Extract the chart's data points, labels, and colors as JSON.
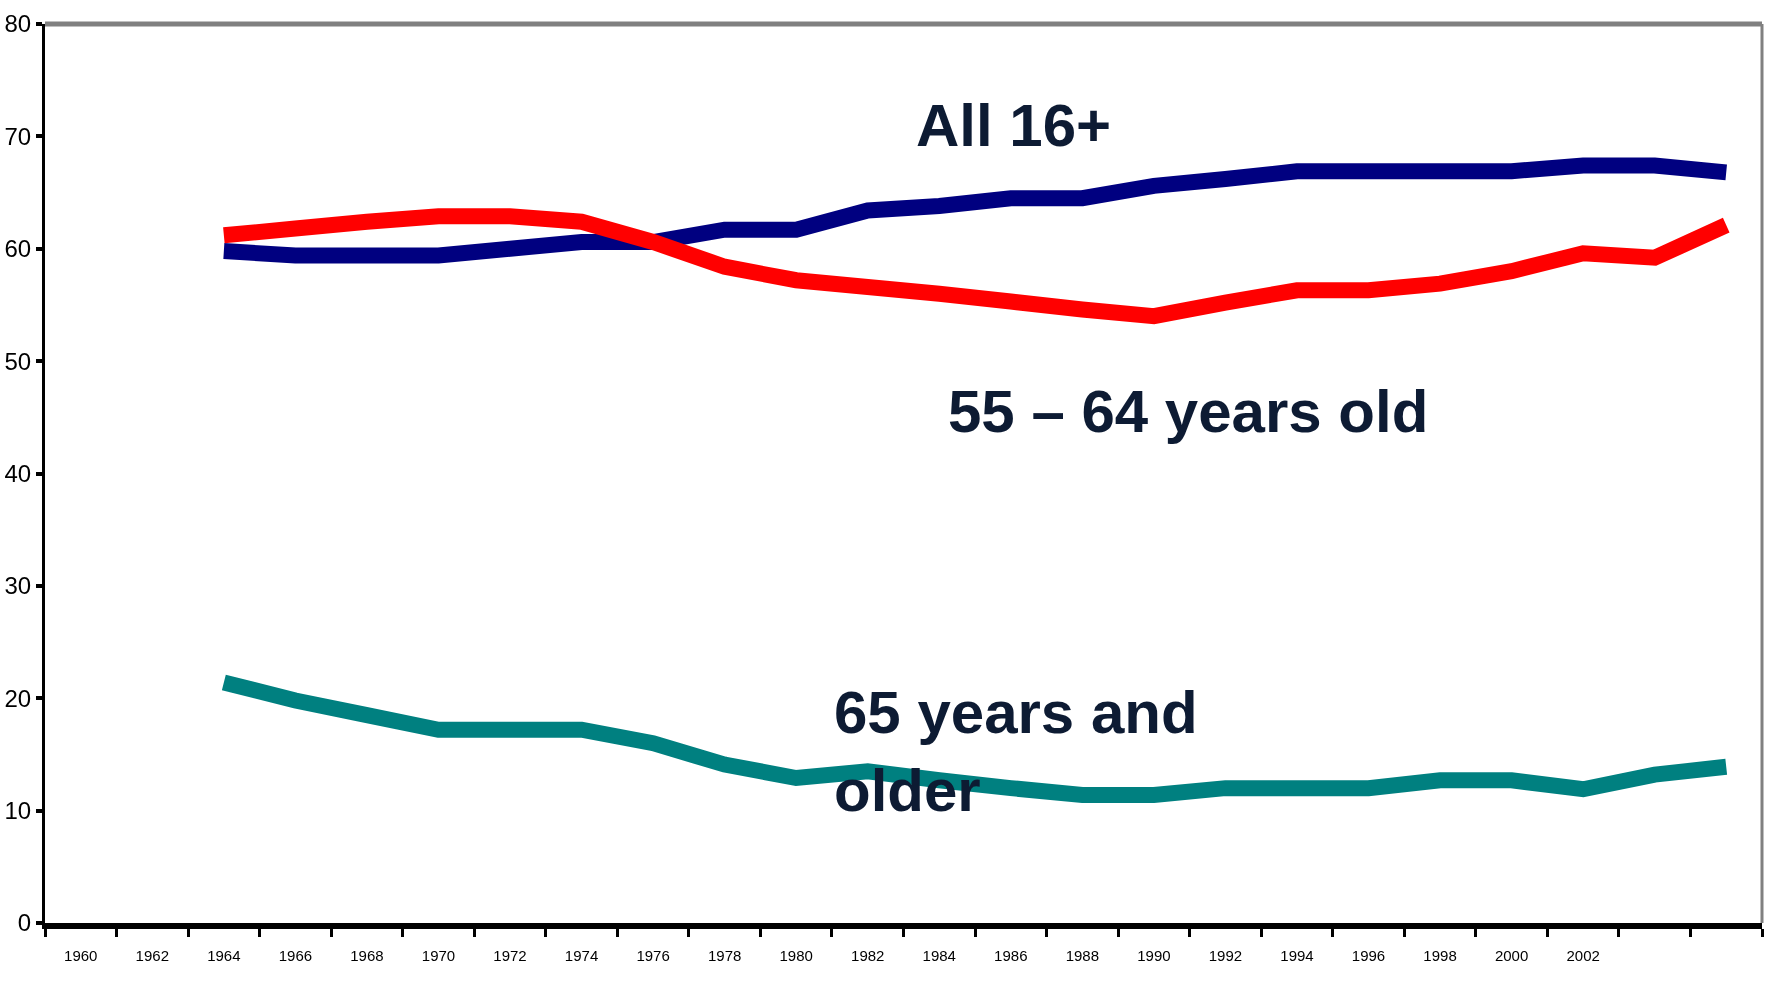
{
  "chart_data": {
    "type": "line",
    "x": [
      1964,
      1966,
      1968,
      1970,
      1972,
      1974,
      1976,
      1978,
      1980,
      1982,
      1984,
      1986,
      1988,
      1990,
      1992,
      1994,
      1996,
      1998,
      2000,
      2002,
      2004,
      2006
    ],
    "series": [
      {
        "name": "All 16+",
        "color": "#000080",
        "values": [
          59.8,
          59.4,
          59.4,
          59.4,
          60.0,
          60.6,
          60.6,
          61.7,
          61.7,
          63.4,
          63.8,
          64.5,
          64.5,
          65.6,
          66.2,
          66.9,
          66.9,
          66.9,
          66.9,
          67.4,
          67.4,
          66.8
        ]
      },
      {
        "name": "55 – 64 years old",
        "color": "#ff0000",
        "values": [
          61.2,
          61.8,
          62.4,
          62.9,
          62.9,
          62.4,
          60.6,
          58.4,
          57.2,
          56.6,
          56.0,
          55.3,
          54.6,
          54.0,
          55.2,
          56.3,
          56.3,
          56.9,
          58.0,
          59.6,
          59.2,
          62.1
        ]
      },
      {
        "name": "65 years and older",
        "color": "#008080",
        "values": [
          21.4,
          19.8,
          18.5,
          17.2,
          17.2,
          17.2,
          16.0,
          14.1,
          12.9,
          13.5,
          12.7,
          12.0,
          11.4,
          11.4,
          12.0,
          12.0,
          12.0,
          12.7,
          12.7,
          11.9,
          13.2,
          13.9
        ]
      }
    ],
    "xlim": [
      1959,
      2007
    ],
    "xticks": [
      {
        "value": 1959,
        "label": null
      },
      {
        "value": 1960,
        "label": "1960"
      },
      {
        "value": 1961,
        "label": null
      },
      {
        "value": 1962,
        "label": "1962"
      },
      {
        "value": 1963,
        "label": null
      },
      {
        "value": 1964,
        "label": "1964"
      },
      {
        "value": 1965,
        "label": null
      },
      {
        "value": 1966,
        "label": "1966"
      },
      {
        "value": 1967,
        "label": null
      },
      {
        "value": 1968,
        "label": "1968"
      },
      {
        "value": 1969,
        "label": null
      },
      {
        "value": 1970,
        "label": "1970"
      },
      {
        "value": 1971,
        "label": null
      },
      {
        "value": 1972,
        "label": "1972"
      },
      {
        "value": 1973,
        "label": null
      },
      {
        "value": 1974,
        "label": "1974"
      },
      {
        "value": 1975,
        "label": null
      },
      {
        "value": 1976,
        "label": "1976"
      },
      {
        "value": 1977,
        "label": null
      },
      {
        "value": 1978,
        "label": "1978"
      },
      {
        "value": 1979,
        "label": null
      },
      {
        "value": 1980,
        "label": "1980"
      },
      {
        "value": 1981,
        "label": null
      },
      {
        "value": 1982,
        "label": "1982"
      },
      {
        "value": 1983,
        "label": null
      },
      {
        "value": 1984,
        "label": "1984"
      },
      {
        "value": 1985,
        "label": null
      },
      {
        "value": 1986,
        "label": "1986"
      },
      {
        "value": 1987,
        "label": null
      },
      {
        "value": 1988,
        "label": "1988"
      },
      {
        "value": 1989,
        "label": null
      },
      {
        "value": 1990,
        "label": "1990"
      },
      {
        "value": 1991,
        "label": null
      },
      {
        "value": 1992,
        "label": "1992"
      },
      {
        "value": 1993,
        "label": null
      },
      {
        "value": 1994,
        "label": "1994"
      },
      {
        "value": 1995,
        "label": null
      },
      {
        "value": 1996,
        "label": "1996"
      },
      {
        "value": 1997,
        "label": null
      },
      {
        "value": 1998,
        "label": "1998"
      },
      {
        "value": 1999,
        "label": null
      },
      {
        "value": 2000,
        "label": "2000"
      },
      {
        "value": 2001,
        "label": null
      },
      {
        "value": 2002,
        "label": "2002"
      },
      {
        "value": 2003,
        "label": null
      },
      {
        "value": 2005,
        "label": null
      },
      {
        "value": 2007,
        "label": null
      }
    ],
    "ylim": [
      0,
      80
    ],
    "yticks": [
      0,
      10,
      20,
      30,
      40,
      50,
      60,
      70,
      80
    ],
    "legend": false,
    "marker": "none",
    "line_style": "solid"
  }
}
